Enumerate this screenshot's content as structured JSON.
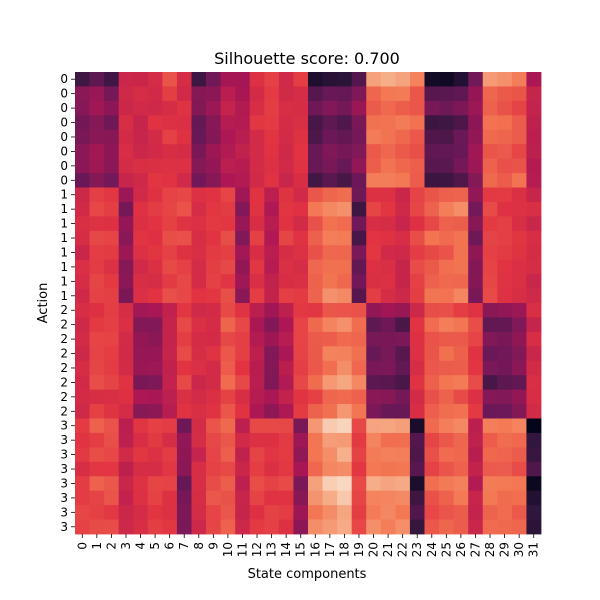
{
  "chart_data": {
    "type": "heatmap",
    "title": "Silhouette score: 0.700",
    "xlabel": "State components",
    "ylabel": "Action",
    "x_ticks": [
      "0",
      "1",
      "2",
      "3",
      "4",
      "5",
      "6",
      "7",
      "8",
      "9",
      "10",
      "11",
      "12",
      "13",
      "14",
      "15",
      "16",
      "17",
      "18",
      "19",
      "20",
      "21",
      "22",
      "23",
      "24",
      "25",
      "26",
      "27",
      "28",
      "29",
      "30",
      "31"
    ],
    "y_ticks": [
      "0",
      "0",
      "0",
      "0",
      "0",
      "0",
      "0",
      "0",
      "1",
      "1",
      "1",
      "1",
      "1",
      "1",
      "1",
      "1",
      "2",
      "2",
      "2",
      "2",
      "2",
      "2",
      "2",
      "2",
      "3",
      "3",
      "3",
      "3",
      "3",
      "3",
      "3",
      "3"
    ],
    "colormap": "rocket",
    "value_range": [
      0,
      1
    ],
    "grid": false,
    "legend": "none",
    "base_profiles": {
      "0": [
        0.3,
        0.35,
        0.3,
        0.55,
        0.55,
        0.58,
        0.62,
        0.58,
        0.28,
        0.35,
        0.45,
        0.45,
        0.58,
        0.62,
        0.55,
        0.6,
        0.18,
        0.22,
        0.22,
        0.3,
        0.78,
        0.78,
        0.78,
        0.72,
        0.18,
        0.18,
        0.22,
        0.35,
        0.75,
        0.72,
        0.72,
        0.48
      ],
      "1": [
        0.55,
        0.62,
        0.6,
        0.4,
        0.58,
        0.58,
        0.62,
        0.62,
        0.58,
        0.6,
        0.62,
        0.4,
        0.6,
        0.5,
        0.6,
        0.58,
        0.68,
        0.72,
        0.72,
        0.3,
        0.6,
        0.58,
        0.55,
        0.62,
        0.68,
        0.7,
        0.72,
        0.38,
        0.62,
        0.6,
        0.58,
        0.55
      ],
      "2": [
        0.55,
        0.62,
        0.62,
        0.58,
        0.38,
        0.38,
        0.5,
        0.62,
        0.55,
        0.58,
        0.68,
        0.62,
        0.48,
        0.38,
        0.48,
        0.62,
        0.68,
        0.75,
        0.78,
        0.72,
        0.32,
        0.32,
        0.28,
        0.58,
        0.68,
        0.72,
        0.7,
        0.62,
        0.3,
        0.32,
        0.35,
        0.55
      ],
      "3": [
        0.62,
        0.65,
        0.65,
        0.52,
        0.58,
        0.6,
        0.6,
        0.35,
        0.55,
        0.65,
        0.68,
        0.52,
        0.62,
        0.62,
        0.62,
        0.38,
        0.78,
        0.85,
        0.88,
        0.62,
        0.78,
        0.78,
        0.78,
        0.18,
        0.68,
        0.72,
        0.72,
        0.5,
        0.72,
        0.72,
        0.72,
        0.12
      ]
    }
  }
}
